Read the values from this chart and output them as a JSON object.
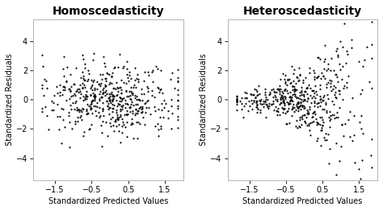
{
  "title_left": "Homoscedasticity",
  "title_right": "Heteroscedasticity",
  "xlabel": "Standardized Predicted Values",
  "ylabel": "Standardized Residuals",
  "xlim": [
    -2.1,
    2.0
  ],
  "ylim": [
    -5.5,
    5.5
  ],
  "xticks": [
    -1.5,
    -0.5,
    0.5,
    1.5
  ],
  "yticks": [
    -4,
    -2,
    0,
    2,
    4
  ],
  "dot_color": "#000000",
  "dot_size": 2.5,
  "bg_color": "#ffffff",
  "fig_bg_color": "#ffffff",
  "seed_homo": 42,
  "seed_hetero": 7,
  "n_points": 500,
  "title_fontsize": 10,
  "label_fontsize": 7,
  "tick_fontsize": 7
}
